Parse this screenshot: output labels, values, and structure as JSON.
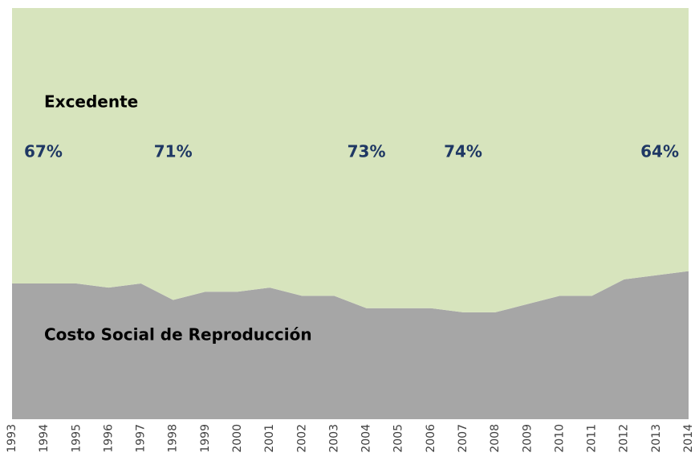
{
  "chart_data": {
    "type": "stacked_area",
    "categories": [
      "1993",
      "1994",
      "1995",
      "1996",
      "1997",
      "1998",
      "1999",
      "2000",
      "2001",
      "2002",
      "2003",
      "2004",
      "2005",
      "2006",
      "2007",
      "2008",
      "2009",
      "2010",
      "2011",
      "2012",
      "2013",
      "2014"
    ],
    "series": [
      {
        "name": "Costo Social de Reproducción",
        "color": "#a6a6a6",
        "values": [
          33,
          33,
          33,
          32,
          33,
          29,
          31,
          31,
          32,
          30,
          30,
          27,
          27,
          27,
          26,
          26,
          28,
          30,
          30,
          34,
          35,
          36
        ]
      },
      {
        "name": "Excedente",
        "color": "#d7e4bd",
        "values": [
          67,
          67,
          67,
          68,
          67,
          71,
          69,
          69,
          68,
          70,
          70,
          73,
          73,
          73,
          74,
          74,
          72,
          70,
          70,
          66,
          65,
          64
        ],
        "value_labels": [
          "67%",
          null,
          null,
          null,
          null,
          "71%",
          null,
          null,
          null,
          null,
          null,
          "73%",
          null,
          null,
          "74%",
          null,
          null,
          null,
          null,
          null,
          null,
          "64%"
        ]
      }
    ],
    "ylim": [
      0,
      100
    ]
  }
}
